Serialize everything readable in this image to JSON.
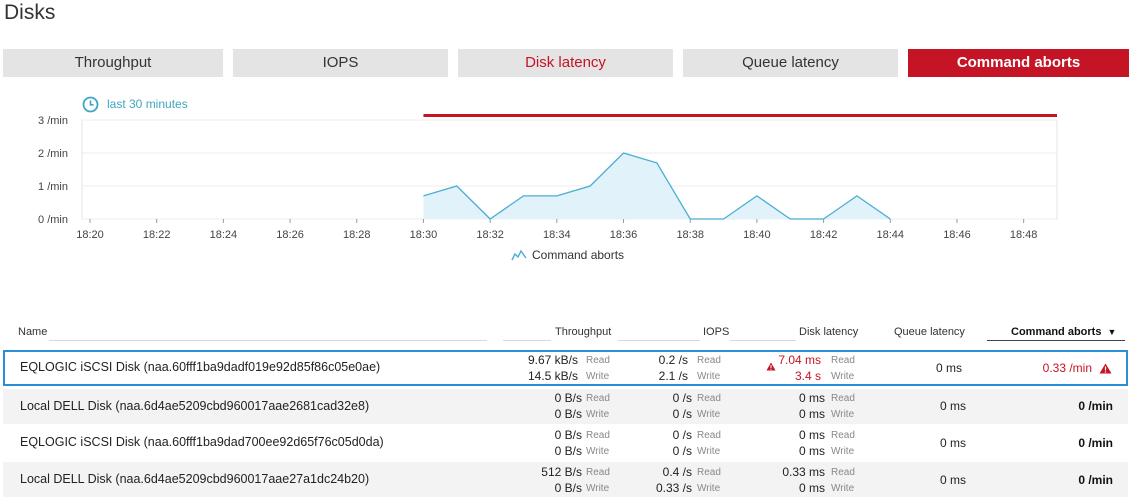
{
  "page": {
    "title": "Disks"
  },
  "tabs": [
    {
      "label": "Throughput",
      "state": "normal"
    },
    {
      "label": "IOPS",
      "state": "normal"
    },
    {
      "label": "Disk latency",
      "state": "warning"
    },
    {
      "label": "Queue latency",
      "state": "normal"
    },
    {
      "label": "Command aborts",
      "state": "active"
    }
  ],
  "timeframe": {
    "label": "last 30 minutes",
    "icon": "clock-icon"
  },
  "chart_data": {
    "type": "area",
    "x_ticks": [
      "18:20",
      "18:22",
      "18:24",
      "18:26",
      "18:28",
      "18:30",
      "18:32",
      "18:34",
      "18:36",
      "18:38",
      "18:40",
      "18:42",
      "18:44",
      "18:46",
      "18:48"
    ],
    "y_ticks": [
      "0 /min",
      "1 /min",
      "2 /min",
      "3 /min"
    ],
    "ylim": [
      0,
      3
    ],
    "x_range": [
      "18:20",
      "18:49"
    ],
    "series": [
      {
        "name": "Command aborts",
        "points": [
          [
            "18:30",
            0.7
          ],
          [
            "18:31",
            1.0
          ],
          [
            "18:32",
            0.0
          ],
          [
            "18:33",
            0.7
          ],
          [
            "18:34",
            0.7
          ],
          [
            "18:35",
            1.0
          ],
          [
            "18:36",
            2.0
          ],
          [
            "18:37",
            1.7
          ],
          [
            "18:38",
            0.0
          ],
          [
            "18:39",
            0.0
          ],
          [
            "18:40",
            0.7
          ],
          [
            "18:41",
            0.0
          ],
          [
            "18:42",
            0.0
          ],
          [
            "18:43",
            0.7
          ],
          [
            "18:44",
            0.0
          ]
        ]
      }
    ],
    "threshold_band": {
      "from": "18:30",
      "to": "18:49",
      "color": "#c41425"
    },
    "colors": {
      "line": "#4aaed4",
      "fill": "#e1f2fa",
      "threshold": "#c41425"
    },
    "grid": true
  },
  "table": {
    "columns": [
      {
        "label": "Name"
      },
      {
        "label": "Throughput"
      },
      {
        "label": "IOPS"
      },
      {
        "label": "Disk latency"
      },
      {
        "label": "Queue latency"
      },
      {
        "label": "Command aborts",
        "sort": "desc",
        "sort_icon": "▼"
      }
    ],
    "read_label": "Read",
    "write_label": "Write",
    "rows": [
      {
        "name": "EQLOGIC iSCSI Disk (naa.60fff1ba9dadf019e92d85f86c05e0ae)",
        "selected": true,
        "throughput_read": "9.67 kB/s",
        "throughput_write": "14.5 kB/s",
        "iops_read": "0.2 /s",
        "iops_write": "2.1 /s",
        "latency_read": "7.04 ms",
        "latency_write": "3.4 s",
        "latency_warning": true,
        "queue_latency": "0 ms",
        "command_aborts": "0.33 /min",
        "aborts_warning": true
      },
      {
        "name": "Local DELL Disk (naa.6d4ae5209cbd960017aae2681cad32e8)",
        "selected": false,
        "throughput_read": "0 B/s",
        "throughput_write": "0 B/s",
        "iops_read": "0 /s",
        "iops_write": "0 /s",
        "latency_read": "0 ms",
        "latency_write": "0 ms",
        "latency_warning": false,
        "queue_latency": "0 ms",
        "command_aborts": "0 /min",
        "aborts_warning": false
      },
      {
        "name": "EQLOGIC iSCSI Disk (naa.60fff1ba9dad700ee92d65f76c05d0da)",
        "selected": false,
        "throughput_read": "0 B/s",
        "throughput_write": "0 B/s",
        "iops_read": "0 /s",
        "iops_write": "0 /s",
        "latency_read": "0 ms",
        "latency_write": "0 ms",
        "latency_warning": false,
        "queue_latency": "0 ms",
        "command_aborts": "0 /min",
        "aborts_warning": false
      },
      {
        "name": "Local DELL Disk (naa.6d4ae5209cbd960017aae27a1dc24b20)",
        "selected": false,
        "throughput_read": "512 B/s",
        "throughput_write": "0 B/s",
        "iops_read": "0.4 /s",
        "iops_write": "0.33 /s",
        "latency_read": "0.33 ms",
        "latency_write": "0 ms",
        "latency_warning": false,
        "queue_latency": "0 ms",
        "command_aborts": "0 /min",
        "aborts_warning": false
      }
    ]
  }
}
